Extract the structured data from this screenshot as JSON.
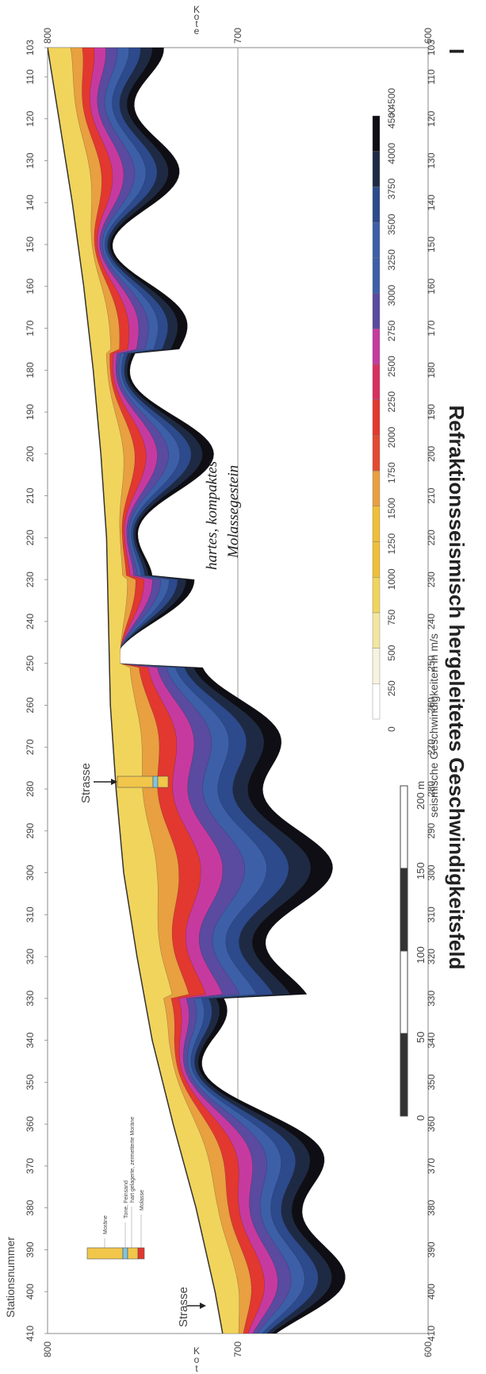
{
  "title": "Refraktionsseismisch hergeleitetes Geschwindigkeitsfeld",
  "title_prefix": "I",
  "colors": {
    "bands": [
      "#ffffff",
      "#f7f3df",
      "#f2e6a0",
      "#f1d45c",
      "#efbf38",
      "#e8a040",
      "#e44a32",
      "#e2382f",
      "#d8305f",
      "#c63aa0",
      "#5a4aa0",
      "#3c5fa8",
      "#2c4a8c",
      "#1e2a44",
      "#0e0e14"
    ],
    "surface_line": "#333333"
  },
  "chart_data": {
    "type": "heatmap",
    "title": "Refraktionsseismisch hergeleitetes Geschwindigkeitsfeld",
    "xlabel": "Stationsnummer",
    "ylabel": "Kote",
    "xlim": [
      410,
      103
    ],
    "ylim": [
      600,
      800
    ],
    "x_ticks": [
      410,
      400,
      390,
      380,
      370,
      360,
      350,
      340,
      330,
      320,
      310,
      300,
      290,
      280,
      270,
      260,
      250,
      240,
      230,
      220,
      210,
      200,
      190,
      180,
      170,
      160,
      150,
      140,
      130,
      120,
      110,
      103
    ],
    "y_ticks": [
      800,
      700,
      600
    ],
    "grid_hlines": [
      700
    ],
    "surface": {
      "x": [
        410,
        400,
        380,
        360,
        340,
        320,
        300,
        280,
        260,
        240,
        220,
        200,
        180,
        160,
        140,
        120,
        103
      ],
      "y": [
        708,
        712,
        722,
        734,
        745,
        753,
        760,
        764,
        767,
        768,
        769,
        772,
        776,
        781,
        787,
        794,
        800
      ]
    },
    "colorbar": {
      "label": "seismische Geschwindigkeiten in m/s",
      "ticks": [
        "0",
        "250",
        "500",
        "750",
        "1000",
        "1250",
        "1500",
        "1750",
        "2000",
        "2250",
        "2500",
        "2750",
        "3000",
        "3250",
        "3500",
        "3750",
        "4000",
        "4500",
        "> 4500"
      ]
    },
    "annotations": [
      {
        "text": "Strasse",
        "x": 408
      },
      {
        "text": "Strasse",
        "x": 300
      },
      {
        "text": "hartes, kompaktes",
        "x": 222,
        "y": 690
      },
      {
        "text": "Molassegestein",
        "x": 222,
        "y": 680
      }
    ],
    "borehole_legend": [
      "Moräne",
      "Tone, Feinsand",
      "hart gelagerte, zermetterte Moräne",
      "Molasse"
    ],
    "scalebar": {
      "ticks": [
        "0",
        "50",
        "100",
        "150",
        "200 m"
      ]
    }
  }
}
